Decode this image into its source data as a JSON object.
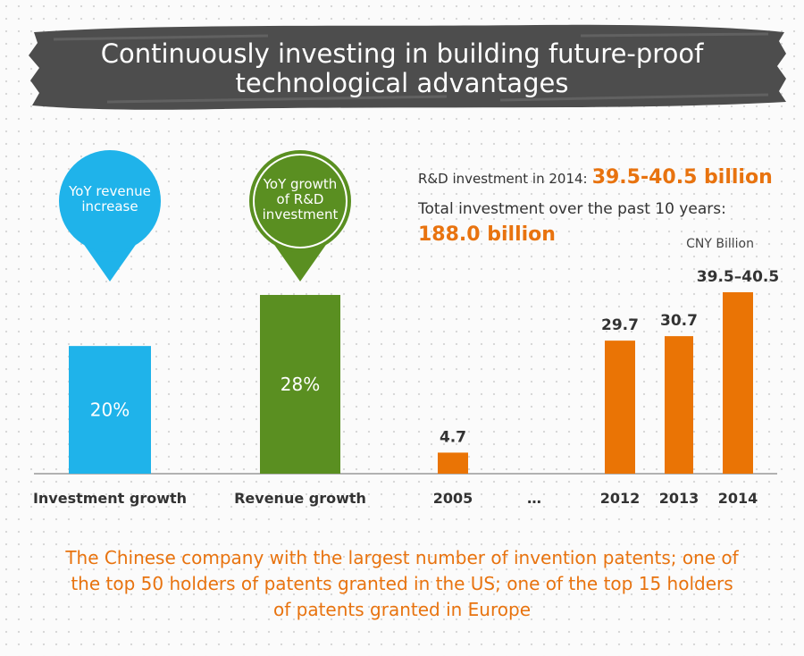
{
  "title": {
    "line1": "Continuously investing in building future-proof",
    "line2": "technological advantages"
  },
  "colors": {
    "banner": "#4d4d4d",
    "blue": "#1fb3ea",
    "green": "#5a8f21",
    "orange": "#ea7405",
    "axis": "#999999",
    "text": "#333333"
  },
  "pins": {
    "blue": {
      "line1": "YoY revenue",
      "line2": "increase"
    },
    "green": {
      "line1": "YoY growth",
      "line2": "of R&D",
      "line3": "investment"
    }
  },
  "info": {
    "rd_prefix": "R&D investment in 2014:",
    "rd_value": "39.5-40.5 billion",
    "total_label": "Total investment over the past 10 years:",
    "total_value": "188.0 billion",
    "unit": "CNY Billion"
  },
  "chart_data": [
    {
      "type": "bar",
      "title": "",
      "categories": [
        "Investment growth",
        "Revenue growth"
      ],
      "values": [
        20,
        28
      ],
      "value_labels": [
        "20%",
        "28%"
      ],
      "ylim": [
        0,
        40
      ],
      "xlabel": "",
      "ylabel": ""
    },
    {
      "type": "bar",
      "title": "",
      "categories": [
        "2005",
        "…",
        "2012",
        "2013",
        "2014"
      ],
      "values": [
        4.7,
        null,
        29.7,
        30.7,
        40.5
      ],
      "value_labels": [
        "4.7",
        "",
        "29.7",
        "30.7",
        "39.5–40.5"
      ],
      "ylabel": "CNY Billion",
      "ylim": [
        0,
        40.5
      ]
    }
  ],
  "footer": {
    "line1": "The Chinese company with the largest number of invention patents; one of",
    "line2": "the top 50 holders of patents granted in the US; one of the top 15 holders",
    "line3": "of patents granted in Europe"
  }
}
